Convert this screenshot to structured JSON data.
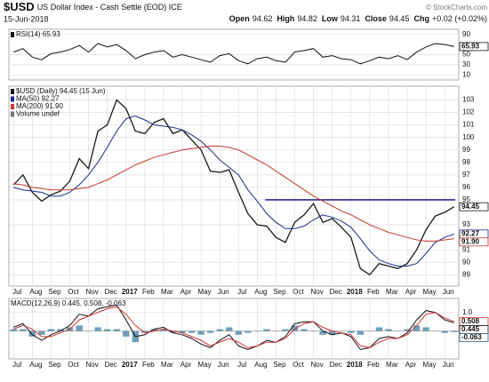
{
  "header": {
    "symbol": "$USD",
    "title": "US Dollar Index - Cash Settle (EOD) ICE",
    "date": "15-Jun-2018",
    "copyright": "© StockCharts.com",
    "quote": [
      {
        "label": "Open",
        "value": 94.62
      },
      {
        "label": "High",
        "value": 94.82
      },
      {
        "label": "Low",
        "value": 94.31
      },
      {
        "label": "Close",
        "value": 94.45
      },
      {
        "label": "Chg",
        "value": "+0.02 (+0.02%)"
      }
    ]
  },
  "chart_data": [
    {
      "type": "line",
      "ylim": [
        0,
        100
      ],
      "yticks": [
        90,
        50,
        30,
        10
      ],
      "grid": true,
      "series": [
        {
          "name": "RSI(14) 65.93",
          "color": "#111111",
          "tag_color": "#111111",
          "values": [
            55,
            62,
            45,
            40,
            52,
            55,
            60,
            68,
            55,
            72,
            65,
            70,
            58,
            42,
            50,
            55,
            58,
            45,
            50,
            45,
            40,
            35,
            48,
            52,
            38,
            32,
            42,
            45,
            38,
            35,
            55,
            58,
            62,
            45,
            48,
            42,
            40,
            32,
            38,
            45,
            42,
            48,
            40,
            55,
            65,
            72,
            70,
            65.93
          ]
        }
      ]
    },
    {
      "type": "line",
      "ylim": [
        88.1,
        104.1
      ],
      "yticks": [
        89,
        90,
        91,
        93,
        95,
        96,
        97,
        98,
        99,
        100,
        101,
        102,
        103
      ],
      "grid": true,
      "hlines": [
        95
      ],
      "hline_color": "#000080",
      "legend_extra": [
        "Volume undef"
      ],
      "categories": [
        "Jul",
        null,
        "Aug",
        null,
        "Sep",
        null,
        "Oct",
        null,
        "Nov",
        null,
        "Dec",
        null,
        "2017",
        null,
        "Feb",
        null,
        "Mar",
        null,
        "Apr",
        null,
        "May",
        null,
        "Jun",
        null,
        "Jul",
        null,
        "Aug",
        null,
        "Sep",
        null,
        "Oct",
        null,
        "Nov",
        null,
        "Dec",
        null,
        "2018",
        null,
        "Feb",
        null,
        "Mar",
        null,
        "Apr",
        null,
        "May",
        null,
        "Jun",
        null
      ],
      "series": [
        {
          "name": "$USD (Daily) 94.45 (15 Jun)",
          "color": "#1a1a1a",
          "tag_color": "#1a1a1a",
          "values": [
            96.2,
            97.0,
            95.6,
            94.9,
            95.4,
            95.7,
            96.5,
            98.3,
            97.5,
            100.5,
            101.0,
            103.0,
            102.3,
            100.5,
            100.3,
            101.2,
            101.5,
            100.3,
            100.6,
            99.8,
            99.0,
            97.3,
            97.2,
            97.4,
            95.6,
            93.9,
            93.0,
            92.9,
            92.0,
            91.6,
            93.2,
            93.8,
            94.7,
            93.2,
            93.5,
            92.8,
            92.0,
            89.5,
            89.0,
            89.9,
            89.7,
            89.5,
            89.9,
            91.0,
            92.6,
            93.7,
            94.0,
            94.45
          ]
        },
        {
          "name": "MA(50) 92.27",
          "color": "#1f2a8a",
          "tag_color": "#1f2a8a",
          "values": [
            96.0,
            95.8,
            95.7,
            95.6,
            95.3,
            95.3,
            95.6,
            96.2,
            97.0,
            98.0,
            99.2,
            100.5,
            101.5,
            101.7,
            101.4,
            101.0,
            100.9,
            100.8,
            100.6,
            100.2,
            99.7,
            99.0,
            98.2,
            97.6,
            97.0,
            95.8,
            94.9,
            93.9,
            93.2,
            92.7,
            92.7,
            92.9,
            93.4,
            93.8,
            93.6,
            93.3,
            92.8,
            91.9,
            90.9,
            90.2,
            89.9,
            89.7,
            89.7,
            89.9,
            90.7,
            91.6,
            92.0,
            92.27
          ]
        },
        {
          "name": "MA(200) 91.90",
          "color": "#c0392b",
          "tag_color": "#c0392b",
          "last_label": "91.90",
          "values": [
            96.3,
            96.2,
            96.0,
            95.9,
            95.8,
            95.8,
            95.8,
            95.9,
            96.0,
            96.3,
            96.6,
            97.0,
            97.4,
            97.8,
            98.1,
            98.4,
            98.6,
            98.8,
            99.0,
            99.1,
            99.2,
            99.3,
            99.3,
            99.2,
            99.0,
            98.6,
            98.2,
            97.8,
            97.3,
            96.8,
            96.3,
            95.8,
            95.3,
            94.9,
            94.5,
            94.1,
            93.8,
            93.4,
            93.0,
            92.7,
            92.4,
            92.2,
            92.0,
            91.8,
            91.7,
            91.7,
            91.8,
            91.9
          ]
        }
      ]
    },
    {
      "type": "line",
      "label": "MACD(12,26,9) 0.445, 0.508, -0.063",
      "ylim": [
        -1.5,
        1.75
      ],
      "yticks": [
        {
          "value": 1,
          "label": "1.0"
        }
      ],
      "grid": true,
      "categories": [
        "Jul",
        null,
        "Aug",
        null,
        "Sep",
        null,
        "Oct",
        null,
        "Nov",
        null,
        "Dec",
        null,
        "2017",
        null,
        "Feb",
        null,
        "Mar",
        null,
        "Apr",
        null,
        "May",
        null,
        "Jun",
        null,
        "Jul",
        null,
        "Aug",
        null,
        "Sep",
        null,
        "Oct",
        null,
        "Nov",
        null,
        "Dec",
        null,
        "2018",
        null,
        "Feb",
        null,
        "Mar",
        null,
        "Apr",
        null,
        "May",
        null,
        "Jun",
        null
      ],
      "series": [
        {
          "style": "histogram",
          "color": "#4a86a8",
          "tag_color": "#2a5f8a",
          "values": [
            0.1,
            0.1,
            -0.3,
            -0.2,
            0.1,
            0.1,
            0.2,
            0.3,
            0,
            0.2,
            0.1,
            0.1,
            -0.3,
            -0.6,
            -0.1,
            0.1,
            0.1,
            -0.1,
            -0.1,
            -0.1,
            -0.2,
            -0.1,
            0.1,
            0.2,
            -0.2,
            -0.1,
            0,
            0.1,
            0,
            0.1,
            0.3,
            0.1,
            0,
            -0.2,
            -0.2,
            0,
            -0.1,
            -0.2,
            0,
            0.2,
            0.1,
            0,
            0.1,
            0.3,
            0.2,
            0,
            -0.1,
            -0.063
          ]
        },
        {
          "color": "#111111",
          "tag_color": "#111111",
          "values": [
            0.2,
            0.4,
            -0.2,
            -0.5,
            -0.2,
            0.0,
            0.3,
            0.9,
            0.8,
            1.2,
            1.3,
            1.4,
            0.6,
            -0.3,
            -0.2,
            0.1,
            0.2,
            -0.1,
            -0.2,
            -0.4,
            -0.7,
            -0.9,
            -0.5,
            -0.2,
            -0.8,
            -1.0,
            -0.8,
            -0.5,
            -0.6,
            -0.3,
            0.4,
            0.5,
            0.5,
            0.0,
            -0.2,
            -0.1,
            -0.3,
            -1.0,
            -0.9,
            -0.4,
            -0.3,
            -0.4,
            -0.1,
            0.6,
            1.1,
            1.0,
            0.6,
            0.445
          ]
        },
        {
          "color": "#d33333",
          "tag_color": "#d33333",
          "values": [
            0.1,
            0.3,
            0.1,
            -0.3,
            -0.3,
            -0.1,
            0.1,
            0.6,
            0.8,
            1.0,
            1.2,
            1.3,
            0.9,
            0.3,
            -0.1,
            0.0,
            0.1,
            0.0,
            -0.1,
            -0.3,
            -0.5,
            -0.8,
            -0.6,
            -0.4,
            -0.6,
            -0.9,
            -0.8,
            -0.6,
            -0.6,
            -0.4,
            0.1,
            0.4,
            0.5,
            0.2,
            0.0,
            -0.1,
            -0.2,
            -0.8,
            -0.9,
            -0.6,
            -0.4,
            -0.4,
            -0.2,
            0.3,
            0.9,
            1.0,
            0.7,
            0.508
          ]
        }
      ]
    }
  ]
}
